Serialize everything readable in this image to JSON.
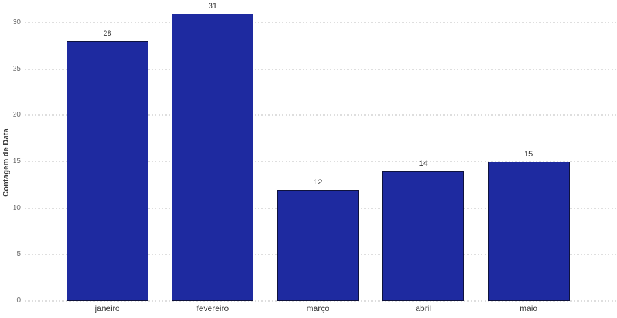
{
  "chart_data": {
    "type": "bar",
    "title": "",
    "xlabel": "",
    "ylabel": "Contagem de Data",
    "categories": [
      "janeiro",
      "fevereiro",
      "março",
      "abril",
      "maio"
    ],
    "values": [
      28,
      31,
      12,
      14,
      15
    ],
    "value_labels": [
      "28",
      "31",
      "12",
      "14",
      "15"
    ],
    "yticks": [
      0,
      5,
      10,
      15,
      20,
      25,
      30
    ],
    "ylim": [
      0,
      31.7
    ],
    "grid": "dotted-horizontal",
    "legend": "none",
    "colors": {
      "bar_fill": "#1e2aa0",
      "bar_border": "#0e123d",
      "gridline": "#dedede",
      "tick_label": "#6e6e6e",
      "value_label": "#333333",
      "category_label": "#404040",
      "axis_label": "#3d3d3d"
    }
  }
}
